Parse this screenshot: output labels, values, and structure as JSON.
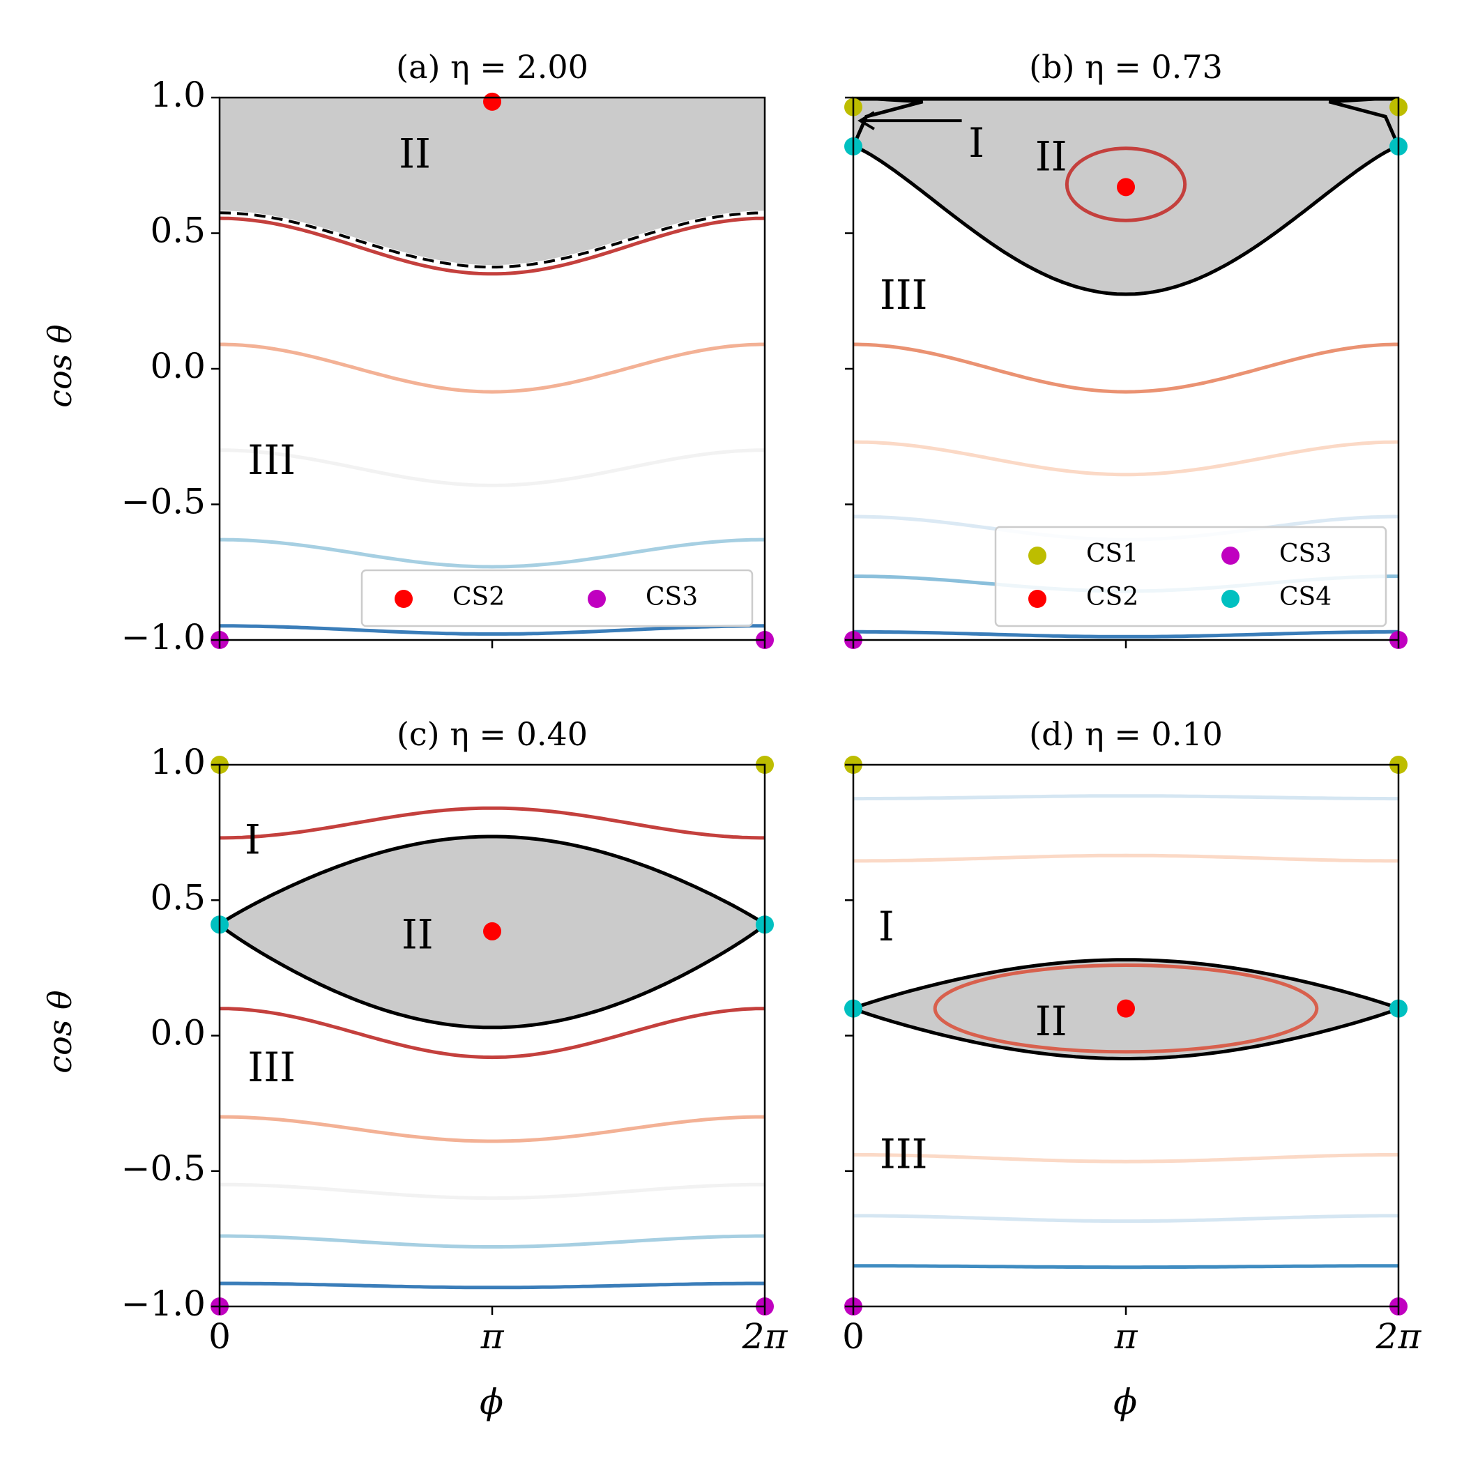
{
  "figure": {
    "ylabel": "cos θ",
    "xlabel": "ϕ"
  },
  "chart_data": [
    {
      "id": "a",
      "type": "line",
      "title": "(a) η = 2.00",
      "xlabel": "ϕ",
      "ylabel": "cos θ",
      "xlim": [
        0,
        6.283
      ],
      "ylim": [
        -1.0,
        1.0
      ],
      "xticks": [
        {
          "value": 0,
          "label": "0"
        },
        {
          "value": 3.1416,
          "label": "π"
        },
        {
          "value": 6.2832,
          "label": "2π"
        }
      ],
      "yticks": [
        {
          "value": 1.0,
          "label": "1.0"
        },
        {
          "value": 0.5,
          "label": "0.5"
        },
        {
          "value": 0.0,
          "label": "0.0"
        },
        {
          "value": -0.5,
          "label": "−0.5"
        },
        {
          "value": -1.0,
          "label": "−1.0"
        }
      ],
      "show_x_labels": false,
      "show_y_labels": true,
      "shaded_region": {
        "lower_max": 0.575,
        "lower_min": 0.375,
        "upper": 1.0
      },
      "dashed_separatrix": {
        "max": 0.575,
        "min": 0.375
      },
      "curves": [
        {
          "type": "wave",
          "max": 0.555,
          "min": 0.35,
          "color": "#c4403d"
        },
        {
          "type": "wave",
          "max": 0.09,
          "min": -0.085,
          "color": "#f3b195"
        },
        {
          "type": "wave",
          "max": -0.3,
          "min": -0.43,
          "color": "#f2f2f2"
        },
        {
          "type": "wave",
          "max": -0.63,
          "min": -0.73,
          "color": "#a6cfe2"
        },
        {
          "type": "wave",
          "max": -0.948,
          "min": -0.978,
          "color": "#3a7db9"
        }
      ],
      "points": [
        {
          "x": 3.1416,
          "y": 0.985,
          "label": "CS2",
          "color": "#ff0000"
        },
        {
          "x": 0,
          "y": -1.0,
          "label": "CS3",
          "color": "#c000c0"
        },
        {
          "x": 6.2832,
          "y": -1.0,
          "label": "CS3",
          "color": "#c000c0"
        }
      ],
      "region_labels": [
        {
          "text": "II",
          "x": 2.25,
          "y": 0.78
        },
        {
          "text": "III",
          "x": 0.6,
          "y": -0.35
        }
      ],
      "legend": {
        "position": "lower-right",
        "entries": [
          {
            "label": "CS2",
            "color": "#ff0000"
          },
          {
            "label": "CS3",
            "color": "#c000c0"
          }
        ]
      }
    },
    {
      "id": "b",
      "type": "line",
      "title": "(b) η = 0.73",
      "xlabel": "ϕ",
      "ylabel": "cos θ",
      "xlim": [
        0,
        6.283
      ],
      "ylim": [
        -1.0,
        1.0
      ],
      "xticks": [
        {
          "value": 0,
          "label": "0"
        },
        {
          "value": 3.1416,
          "label": "π"
        },
        {
          "value": 6.2832,
          "label": "2π"
        }
      ],
      "yticks": [
        {
          "value": 1.0,
          "label": "1.0"
        },
        {
          "value": 0.5,
          "label": "0.5"
        },
        {
          "value": 0.0,
          "label": "0.0"
        },
        {
          "value": -0.5,
          "label": "−0.5"
        },
        {
          "value": -1.0,
          "label": "−1.0"
        }
      ],
      "show_x_labels": false,
      "show_y_labels": false,
      "lens": {
        "top": 1.0,
        "bottom_edge": 0.82,
        "bottom_mid": 0.275
      },
      "small_loop": {
        "x_left": 0,
        "x_right": 0.8,
        "y_top": 0.985,
        "y_mid": 0.91,
        "y_bottom": 0.82
      },
      "curves": [
        {
          "type": "wave",
          "max": 0.09,
          "min": -0.085,
          "color": "#ea9272"
        },
        {
          "type": "wave",
          "max": -0.27,
          "min": -0.39,
          "color": "#fbd9c6"
        },
        {
          "type": "wave",
          "max": -0.545,
          "min": -0.63,
          "color": "#dbe9f4"
        },
        {
          "type": "wave",
          "max": -0.765,
          "min": -0.82,
          "color": "#8abfdb"
        },
        {
          "type": "wave",
          "max": -0.97,
          "min": -0.988,
          "color": "#3a7db9"
        }
      ],
      "ellipses": [
        {
          "cx": 3.1416,
          "cy": 0.68,
          "rx": 0.68,
          "ry": 0.133,
          "color": "#c4403d"
        }
      ],
      "points": [
        {
          "x": 3.1416,
          "y": 0.67,
          "label": "CS2",
          "color": "#ff0000"
        },
        {
          "x": 0,
          "y": 0.965,
          "label": "CS1",
          "color": "#bdbd00"
        },
        {
          "x": 6.2832,
          "y": 0.965,
          "label": "CS1",
          "color": "#bdbd00"
        },
        {
          "x": 0,
          "y": 0.82,
          "label": "CS4",
          "color": "#00c0c0"
        },
        {
          "x": 6.2832,
          "y": 0.82,
          "label": "CS4",
          "color": "#00c0c0"
        },
        {
          "x": 0,
          "y": -1.0,
          "label": "CS3",
          "color": "#c000c0"
        },
        {
          "x": 6.2832,
          "y": -1.0,
          "label": "CS3",
          "color": "#c000c0"
        }
      ],
      "arrow": {
        "from_x": 1.25,
        "from_y": 0.915,
        "to_x": 0.08,
        "to_y": 0.915
      },
      "region_labels": [
        {
          "text": "I",
          "x": 1.42,
          "y": 0.82
        },
        {
          "text": "II",
          "x": 2.28,
          "y": 0.77
        },
        {
          "text": "III",
          "x": 0.58,
          "y": 0.26
        }
      ],
      "legend": {
        "position": "lower-right",
        "entries": [
          {
            "label": "CS1",
            "color": "#bdbd00"
          },
          {
            "label": "CS3",
            "color": "#c000c0"
          },
          {
            "label": "CS2",
            "color": "#ff0000"
          },
          {
            "label": "CS4",
            "color": "#00c0c0"
          }
        ]
      }
    },
    {
      "id": "c",
      "type": "line",
      "title": "(c) η = 0.40",
      "xlabel": "ϕ",
      "ylabel": "cos θ",
      "xlim": [
        0,
        6.283
      ],
      "ylim": [
        -1.0,
        1.0
      ],
      "xticks": [
        {
          "value": 0,
          "label": "0"
        },
        {
          "value": 3.1416,
          "label": "π"
        },
        {
          "value": 6.2832,
          "label": "2π"
        }
      ],
      "yticks": [
        {
          "value": 1.0,
          "label": "1.0"
        },
        {
          "value": 0.5,
          "label": "0.5"
        },
        {
          "value": 0.0,
          "label": "0.0"
        },
        {
          "value": -0.5,
          "label": "−0.5"
        },
        {
          "value": -1.0,
          "label": "−1.0"
        }
      ],
      "show_x_labels": true,
      "show_y_labels": true,
      "lens": {
        "edge": 0.41,
        "top_mid": 0.735,
        "bottom_mid": 0.03
      },
      "curves": [
        {
          "type": "wave",
          "max": 0.84,
          "min": 0.73,
          "invert": true,
          "color": "#c4403d"
        },
        {
          "type": "wave",
          "max": 0.1,
          "min": -0.08,
          "color": "#c4403d"
        },
        {
          "type": "wave",
          "max": -0.3,
          "min": -0.39,
          "color": "#f3b195"
        },
        {
          "type": "wave",
          "max": -0.55,
          "min": -0.6,
          "color": "#f2f2f2"
        },
        {
          "type": "wave",
          "max": -0.74,
          "min": -0.78,
          "color": "#a6cfe2"
        },
        {
          "type": "wave",
          "max": -0.915,
          "min": -0.93,
          "color": "#3a7db9"
        }
      ],
      "points": [
        {
          "x": 3.1416,
          "y": 0.385,
          "label": "CS2",
          "color": "#ff0000"
        },
        {
          "x": 0,
          "y": 1.0,
          "label": "CS1",
          "color": "#bdbd00"
        },
        {
          "x": 6.2832,
          "y": 1.0,
          "label": "CS1",
          "color": "#bdbd00"
        },
        {
          "x": 0,
          "y": 0.41,
          "label": "CS4",
          "color": "#00c0c0"
        },
        {
          "x": 6.2832,
          "y": 0.41,
          "label": "CS4",
          "color": "#00c0c0"
        },
        {
          "x": 0,
          "y": -1.0,
          "label": "CS3",
          "color": "#c000c0"
        },
        {
          "x": 6.2832,
          "y": -1.0,
          "label": "CS3",
          "color": "#c000c0"
        }
      ],
      "region_labels": [
        {
          "text": "I",
          "x": 0.38,
          "y": 0.71
        },
        {
          "text": "II",
          "x": 2.28,
          "y": 0.36
        },
        {
          "text": "III",
          "x": 0.6,
          "y": -0.13
        }
      ]
    },
    {
      "id": "d",
      "type": "line",
      "title": "(d) η = 0.10",
      "xlabel": "ϕ",
      "ylabel": "cos θ",
      "xlim": [
        0,
        6.283
      ],
      "ylim": [
        -1.0,
        1.0
      ],
      "xticks": [
        {
          "value": 0,
          "label": "0"
        },
        {
          "value": 3.1416,
          "label": "π"
        },
        {
          "value": 6.2832,
          "label": "2π"
        }
      ],
      "yticks": [
        {
          "value": 1.0,
          "label": "1.0"
        },
        {
          "value": 0.5,
          "label": "0.5"
        },
        {
          "value": 0.0,
          "label": "0.0"
        },
        {
          "value": -0.5,
          "label": "−0.5"
        },
        {
          "value": -1.0,
          "label": "−1.0"
        }
      ],
      "show_x_labels": true,
      "show_y_labels": false,
      "lens": {
        "edge": 0.1,
        "top_mid": 0.28,
        "bottom_mid": -0.085
      },
      "curves": [
        {
          "type": "wave",
          "max": 0.885,
          "min": 0.875,
          "invert": true,
          "color": "#d5e6f2"
        },
        {
          "type": "wave",
          "max": 0.665,
          "min": 0.645,
          "invert": true,
          "color": "#fbd9c6"
        },
        {
          "type": "wave",
          "max": -0.44,
          "min": -0.465,
          "color": "#fbd9c6"
        },
        {
          "type": "wave",
          "max": -0.665,
          "min": -0.685,
          "color": "#d5e6f2"
        },
        {
          "type": "wave",
          "max": -0.85,
          "min": -0.855,
          "color": "#3f8cc1"
        }
      ],
      "ellipses": [
        {
          "cx": 3.1416,
          "cy": 0.1,
          "rx": 2.2,
          "ry": 0.16,
          "color": "#d8604d"
        }
      ],
      "points": [
        {
          "x": 3.1416,
          "y": 0.1,
          "label": "CS2",
          "color": "#ff0000"
        },
        {
          "x": 0,
          "y": 1.0,
          "label": "CS1",
          "color": "#bdbd00"
        },
        {
          "x": 6.2832,
          "y": 1.0,
          "label": "CS1",
          "color": "#bdbd00"
        },
        {
          "x": 0,
          "y": 0.1,
          "label": "CS4",
          "color": "#00c0c0"
        },
        {
          "x": 6.2832,
          "y": 0.1,
          "label": "CS4",
          "color": "#00c0c0"
        },
        {
          "x": 0,
          "y": -1.0,
          "label": "CS3",
          "color": "#c000c0"
        },
        {
          "x": 6.2832,
          "y": -1.0,
          "label": "CS3",
          "color": "#c000c0"
        }
      ],
      "region_labels": [
        {
          "text": "I",
          "x": 0.38,
          "y": 0.39
        },
        {
          "text": "II",
          "x": 2.28,
          "y": 0.04
        },
        {
          "text": "III",
          "x": 0.58,
          "y": -0.45
        }
      ]
    }
  ]
}
